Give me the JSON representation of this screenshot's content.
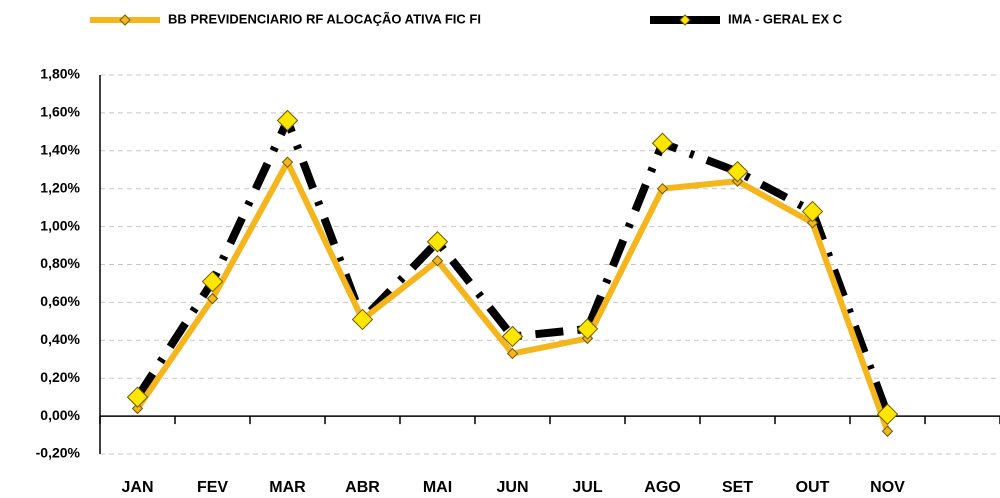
{
  "chart_data": {
    "type": "line",
    "categories": [
      "JAN",
      "FEV",
      "MAR",
      "ABR",
      "MAI",
      "JUN",
      "JUL",
      "AGO",
      "SET",
      "OUT",
      "NOV",
      null
    ],
    "series": [
      {
        "name": "BB PREVIDENCIARIO RF ALOCAÇÃO ATIVA FIC FI",
        "color": "#f5b51c",
        "marker_color": "#f5b51c",
        "values": [
          0.04,
          0.62,
          1.34,
          0.51,
          0.82,
          0.33,
          0.41,
          1.2,
          1.24,
          1.02,
          -0.08,
          null
        ]
      },
      {
        "name": "IMA - GERAL EX C",
        "color": "#000000",
        "marker_color": "#ffe600",
        "values": [
          0.1,
          0.71,
          1.56,
          0.51,
          0.92,
          0.42,
          0.46,
          1.44,
          1.29,
          1.08,
          0.01,
          null
        ]
      }
    ],
    "ylim": [
      -0.2,
      1.8
    ],
    "yticks": [
      {
        "value": -0.2,
        "label": "-0,20%"
      },
      {
        "value": 0,
        "label": "0,00%"
      },
      {
        "value": 0.2,
        "label": "0,20%"
      },
      {
        "value": 0.4,
        "label": "0,40%"
      },
      {
        "value": 0.6,
        "label": "0,60%"
      },
      {
        "value": 0.8,
        "label": "0,80%"
      },
      {
        "value": 1.0,
        "label": "1,00%"
      },
      {
        "value": 1.2,
        "label": "1,20%"
      },
      {
        "value": 1.4,
        "label": "1,40%"
      },
      {
        "value": 1.6,
        "label": "1,60%"
      },
      {
        "value": 1.8,
        "label": "1,80%"
      }
    ],
    "grid": true,
    "legend": "top"
  }
}
